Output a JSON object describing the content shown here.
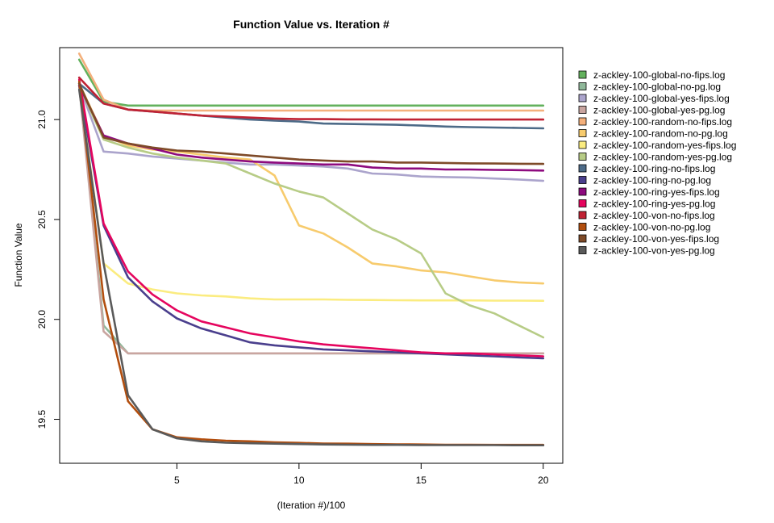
{
  "chart_data": {
    "type": "line",
    "title": "Function Value vs. Iteration #",
    "xlabel": "(Iteration #)/100",
    "ylabel": "Function Value",
    "xlim": [
      0.2,
      20.8
    ],
    "ylim": [
      19.28,
      21.36
    ],
    "xticks": [
      5,
      10,
      15,
      20
    ],
    "yticks": [
      19.5,
      20.0,
      20.5,
      21.0
    ],
    "ytick_labels": [
      "19.5",
      "20.0",
      "20.5",
      "21.0"
    ],
    "grid": false,
    "legend_position": "right",
    "x": [
      1,
      2,
      3,
      4,
      5,
      6,
      7,
      8,
      9,
      10,
      11,
      12,
      13,
      14,
      15,
      16,
      17,
      18,
      19,
      20
    ],
    "series": [
      {
        "name": "z-ackley-100-global-no-fips.log",
        "color": "#63b15d",
        "values": [
          21.3,
          21.09,
          21.07,
          21.07,
          21.07,
          21.07,
          21.07,
          21.07,
          21.07,
          21.07,
          21.07,
          21.07,
          21.07,
          21.07,
          21.07,
          21.07,
          21.07,
          21.07,
          21.07,
          21.07
        ]
      },
      {
        "name": "z-ackley-100-global-no-pg.log",
        "color": "#8fb89a",
        "values": [
          21.18,
          19.97,
          19.83,
          19.83,
          19.83,
          19.83,
          19.83,
          19.83,
          19.83,
          19.83,
          19.83,
          19.83,
          19.83,
          19.83,
          19.83,
          19.83,
          19.83,
          19.83,
          19.83,
          19.83
        ]
      },
      {
        "name": "z-ackley-100-global-yes-fips.log",
        "color": "#aba4cc",
        "values": [
          21.17,
          20.84,
          20.83,
          20.815,
          20.805,
          20.795,
          20.785,
          20.775,
          20.775,
          20.77,
          20.765,
          20.755,
          20.73,
          20.725,
          20.715,
          20.712,
          20.71,
          20.705,
          20.7,
          20.693
        ]
      },
      {
        "name": "z-ackley-100-global-yes-pg.log",
        "color": "#c9a5a0",
        "values": [
          21.17,
          19.94,
          19.83,
          19.83,
          19.83,
          19.83,
          19.83,
          19.83,
          19.83,
          19.83,
          19.83,
          19.83,
          19.83,
          19.83,
          19.83,
          19.83,
          19.83,
          19.83,
          19.83,
          19.83
        ]
      },
      {
        "name": "z-ackley-100-random-no-fips.log",
        "color": "#f4b07c",
        "values": [
          21.33,
          21.1,
          21.05,
          21.045,
          21.045,
          21.045,
          21.045,
          21.045,
          21.045,
          21.045,
          21.045,
          21.045,
          21.045,
          21.045,
          21.045,
          21.045,
          21.045,
          21.045,
          21.045,
          21.045
        ]
      },
      {
        "name": "z-ackley-100-random-no-pg.log",
        "color": "#f7cb6d",
        "values": [
          21.18,
          20.92,
          20.87,
          20.85,
          20.84,
          20.825,
          20.81,
          20.8,
          20.72,
          20.47,
          20.43,
          20.36,
          20.28,
          20.265,
          20.245,
          20.235,
          20.215,
          20.195,
          20.185,
          20.18
        ]
      },
      {
        "name": "z-ackley-100-random-yes-fips.log",
        "color": "#fbec80",
        "values": [
          21.17,
          20.28,
          20.18,
          20.15,
          20.13,
          20.12,
          20.115,
          20.105,
          20.1,
          20.1,
          20.1,
          20.098,
          20.097,
          20.096,
          20.095,
          20.095,
          20.095,
          20.094,
          20.094,
          20.093
        ]
      },
      {
        "name": "z-ackley-100-random-yes-pg.log",
        "color": "#b7cc86",
        "values": [
          21.17,
          20.9,
          20.86,
          20.83,
          20.81,
          20.795,
          20.78,
          20.73,
          20.68,
          20.64,
          20.61,
          20.53,
          20.45,
          20.4,
          20.33,
          20.13,
          20.07,
          20.03,
          19.97,
          19.91
        ]
      },
      {
        "name": "z-ackley-100-ring-no-fips.log",
        "color": "#4d6b88",
        "values": [
          21.18,
          21.08,
          21.05,
          21.04,
          21.03,
          21.02,
          21.01,
          21.0,
          20.995,
          20.99,
          20.98,
          20.978,
          20.976,
          20.974,
          20.97,
          20.965,
          20.962,
          20.96,
          20.958,
          20.956
        ]
      },
      {
        "name": "z-ackley-100-ring-no-pg.log",
        "color": "#4a3f8d",
        "values": [
          21.17,
          20.47,
          20.21,
          20.09,
          20.005,
          19.955,
          19.92,
          19.885,
          19.87,
          19.86,
          19.85,
          19.845,
          19.84,
          19.835,
          19.83,
          19.825,
          19.82,
          19.815,
          19.81,
          19.805
        ]
      },
      {
        "name": "z-ackley-100-ring-yes-fips.log",
        "color": "#8e0b7f",
        "values": [
          21.17,
          20.92,
          20.88,
          20.855,
          20.825,
          20.81,
          20.8,
          20.79,
          20.785,
          20.78,
          20.775,
          20.775,
          20.76,
          20.755,
          20.755,
          20.75,
          20.75,
          20.748,
          20.747,
          20.745
        ]
      },
      {
        "name": "z-ackley-100-ring-yes-pg.log",
        "color": "#e5055e",
        "values": [
          21.2,
          20.48,
          20.24,
          20.125,
          20.045,
          19.99,
          19.96,
          19.93,
          19.91,
          19.89,
          19.875,
          19.865,
          19.855,
          19.845,
          19.835,
          19.83,
          19.83,
          19.825,
          19.82,
          19.815
        ]
      },
      {
        "name": "z-ackley-100-von-no-fips.log",
        "color": "#c02234",
        "values": [
          21.21,
          21.08,
          21.05,
          21.04,
          21.03,
          21.02,
          21.015,
          21.01,
          21.005,
          21.002,
          21.002,
          21.001,
          21.001,
          21.0,
          21.0,
          21.0,
          21.0,
          21.0,
          21.0,
          21.0
        ]
      },
      {
        "name": "z-ackley-100-von-no-pg.log",
        "color": "#b24e0e",
        "values": [
          21.19,
          20.1,
          19.59,
          19.45,
          19.41,
          19.4,
          19.393,
          19.39,
          19.385,
          19.382,
          19.379,
          19.378,
          19.376,
          19.375,
          19.374,
          19.373,
          19.373,
          19.372,
          19.372,
          19.372
        ]
      },
      {
        "name": "z-ackley-100-von-yes-fips.log",
        "color": "#7e4a28",
        "values": [
          21.18,
          20.91,
          20.88,
          20.86,
          20.845,
          20.84,
          20.83,
          20.82,
          20.81,
          20.8,
          20.795,
          20.79,
          20.79,
          20.785,
          20.785,
          20.783,
          20.781,
          20.78,
          20.779,
          20.778
        ]
      },
      {
        "name": "z-ackley-100-von-yes-pg.log",
        "color": "#5a5a5a",
        "values": [
          21.15,
          20.28,
          19.62,
          19.45,
          19.405,
          19.39,
          19.383,
          19.38,
          19.378,
          19.376,
          19.374,
          19.373,
          19.372,
          19.372,
          19.371,
          19.371,
          19.371,
          19.371,
          19.37,
          19.37
        ]
      }
    ]
  }
}
